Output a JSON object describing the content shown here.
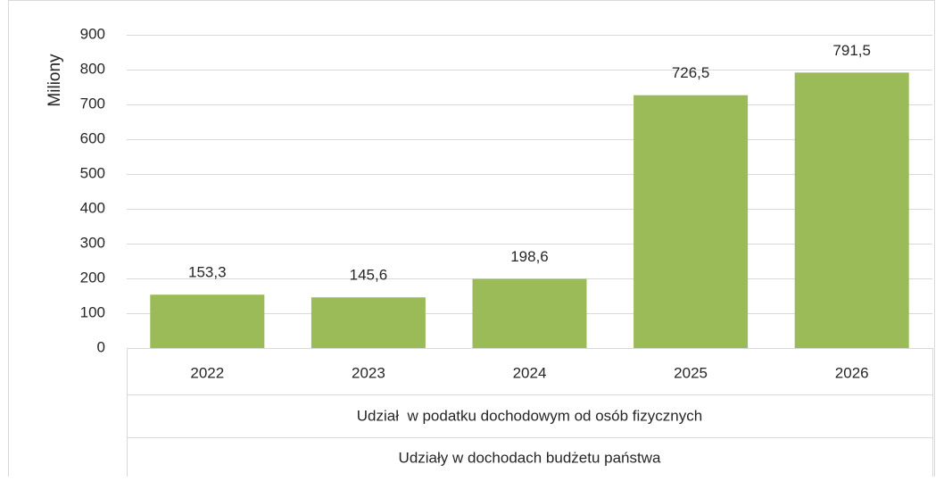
{
  "chart_data": {
    "type": "bar",
    "y_label": "Miliony",
    "categories": [
      "2022",
      "2023",
      "2024",
      "2025",
      "2026"
    ],
    "values": [
      153.3,
      145.6,
      198.6,
      726.5,
      791.5
    ],
    "value_labels": [
      "153,3",
      "145,6",
      "198,6",
      "726,5",
      "791,5"
    ],
    "group_labels": [
      "Udział  w podatku dochodowym od osób fizycznych",
      "Udziały w dochodach budżetu państwa"
    ],
    "color": "#9bbb59",
    "ylim": [
      0,
      900
    ],
    "yticks": [
      0,
      100,
      200,
      300,
      400,
      500,
      600,
      700,
      800,
      900
    ],
    "grid": true
  }
}
